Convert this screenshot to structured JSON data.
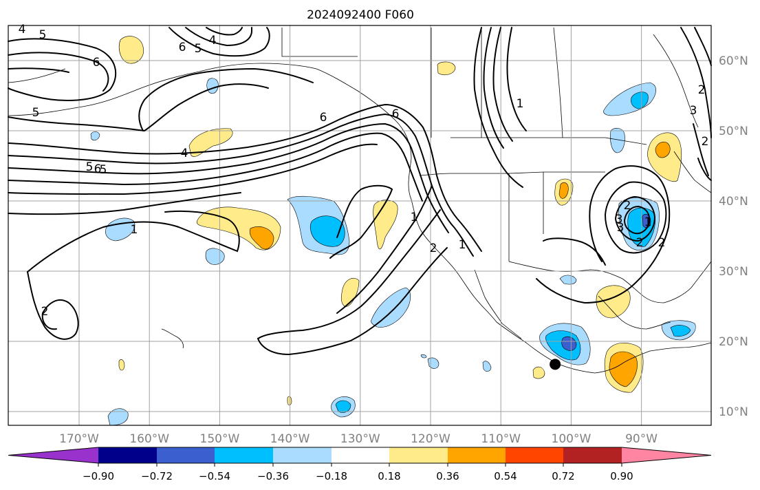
{
  "title": "2024092400 F060",
  "map": {
    "lon_range": [
      -180,
      -80
    ],
    "lat_range": [
      8,
      65
    ],
    "lon_labels": [
      "170°W",
      "160°W",
      "150°W",
      "140°W",
      "130°W",
      "120°W",
      "110°W",
      "100°W",
      "90°W"
    ],
    "lat_labels": [
      "10°N",
      "20°N",
      "30°N",
      "40°N",
      "50°N",
      "60°N"
    ],
    "grid": true,
    "contour_color": "#000000",
    "contour_labels": [
      "5",
      "4",
      "6",
      "5",
      "4",
      "6",
      "5",
      "5",
      "6",
      "4",
      "6",
      "5",
      "1",
      "1",
      "2",
      "2",
      "1",
      "3",
      "2",
      "2",
      "3",
      "6",
      "1",
      "2",
      "2",
      "1",
      "3",
      "2"
    ],
    "storm_marker": {
      "symbol": "filled-circle",
      "lon": -102.2,
      "lat": 16.7
    },
    "fill_colors": {
      "neg_018_036": "#aadcff",
      "neg_036_054": "#00bfff",
      "neg_054_072": "#3b5fcf",
      "neg_072_090": "#00008b",
      "pos_018_036": "#ffeb8a",
      "pos_036_054": "#ffa500",
      "pos_054_072": "#ff4500"
    }
  },
  "colorbar": {
    "ticks": [
      "−0.90",
      "−0.72",
      "−0.54",
      "−0.36",
      "−0.18",
      "0.18",
      "0.36",
      "0.54",
      "0.72",
      "0.90"
    ],
    "colors": [
      "#9932cc",
      "#00008b",
      "#3b5fcf",
      "#00bfff",
      "#aadcff",
      "#ffffff",
      "#ffeb8a",
      "#ffa500",
      "#ff4500",
      "#b22222",
      "#ff85a2"
    ]
  }
}
